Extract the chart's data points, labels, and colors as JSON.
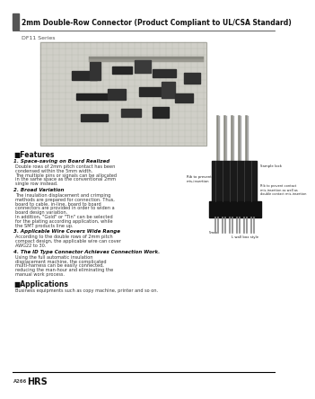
{
  "title": "2mm Double-Row Connector (Product Compliant to UL/CSA Standard)",
  "series_name": "DF11 Series",
  "page_label": "A266",
  "brand": "HRS",
  "bg_color": "#ffffff",
  "header_bar_color": "#555555",
  "header_line_color": "#444444",
  "features_title": "■Features",
  "features": [
    {
      "heading": "1. Space-saving on Board Realized",
      "body": "Double rows of 2mm pitch contact has been condensed within the 5mm width.\nThe multiple pins or signals can be allocated in the same space as the conventional 2mm single row instead."
    },
    {
      "heading": "2. Broad Variation",
      "body": "The insulation displacement and crimping methods are prepared for connection. Thus, board to cable, in-line, board to board connectors are provided in order to widen a board design variation.\nIn addition, \"Gold\" or \"Tin\" can be selected for the plating according application, while the SMT products line up."
    },
    {
      "heading": "3. Applicable Wire Covers Wide Range",
      "body": "According to the double rows of 2mm pitch compact design, the applicable wire can cover AWG22 to 30."
    },
    {
      "heading": "4. The ID Type Connector Achieves Connection Work.",
      "body": "Using the full automatic insulation displacement machine, the complicated multi-harness can be easily connected, reducing the man-hour and eliminating the manual work process."
    }
  ],
  "applications_title": "■Applications",
  "applications_body": "Business equipments such as copy machine, printer and so on.",
  "footer_line_color": "#000000",
  "title_fontsize": 5.5,
  "series_fontsize": 4.5,
  "body_fontsize": 3.6,
  "heading_fontsize": 4.0,
  "section_title_fontsize": 5.5
}
